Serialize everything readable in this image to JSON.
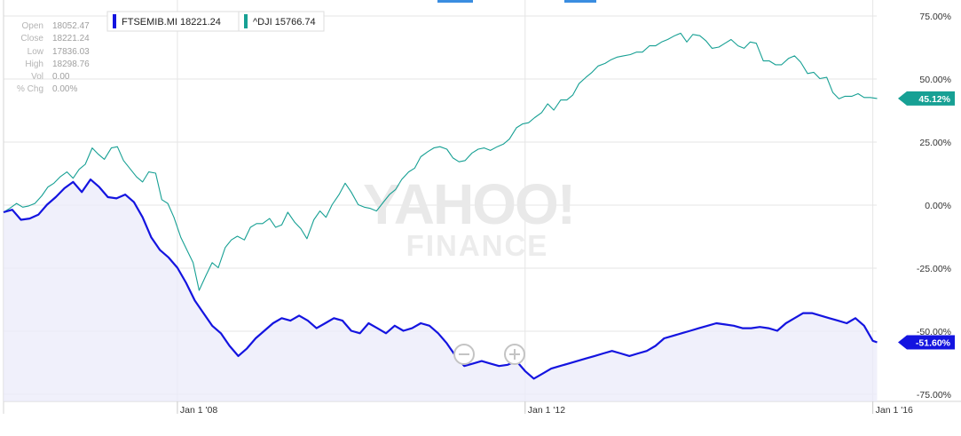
{
  "ohlc": {
    "rows": [
      {
        "key": "Open",
        "value": "18052.47"
      },
      {
        "key": "Close",
        "value": "18221.24"
      },
      {
        "key": "Low",
        "value": "17836.03"
      },
      {
        "key": "High",
        "value": "18298.76"
      },
      {
        "key": "Vol",
        "value": "0.00"
      },
      {
        "key": "% Chg",
        "value": "0.00%"
      }
    ]
  },
  "legend": [
    {
      "label": "FTSEMIB.MI 18221.24",
      "color": "#1414e0"
    },
    {
      "label": "^DJI 15766.74",
      "color": "#17a094"
    }
  ],
  "watermark": {
    "line1": "YAHOO!",
    "line2": "FINANCE"
  },
  "zoom": {
    "out_icon": "zoom-out-icon",
    "in_icon": "zoom-in-icon"
  },
  "chart_data": {
    "type": "line",
    "y_unit": "percent change",
    "ylim": [
      -75,
      75
    ],
    "y_ticks": [
      75,
      50,
      25,
      0,
      -25,
      -50,
      -75
    ],
    "y_tick_labels": [
      "75.00%",
      "50.00%",
      "25.00%",
      "0.00%",
      "-25.00%",
      "-50.00%",
      "-75.00%"
    ],
    "x_ticks": [
      2008,
      2012,
      2016
    ],
    "x_tick_labels": [
      "Jan 1 '08",
      "Jan 1 '12",
      "Jan 1 '16"
    ],
    "xlim": [
      2006.0,
      2016.3
    ],
    "grid": true,
    "legend_position": "top-left",
    "series": [
      {
        "name": "^DJI",
        "color": "#17a094",
        "end_label": "45.12%",
        "x": [
          2006.0,
          2006.07,
          2006.15,
          2006.22,
          2006.29,
          2006.36,
          2006.44,
          2006.51,
          2006.58,
          2006.65,
          2006.73,
          2006.8,
          2006.87,
          2006.94,
          2007.02,
          2007.09,
          2007.16,
          2007.24,
          2007.31,
          2007.38,
          2007.45,
          2007.53,
          2007.6,
          2007.67,
          2007.75,
          2007.82,
          2007.89,
          2007.96,
          2008.04,
          2008.11,
          2008.18,
          2008.25,
          2008.33,
          2008.4,
          2008.47,
          2008.55,
          2008.62,
          2008.69,
          2008.77,
          2008.84,
          2008.91,
          2008.98,
          2009.06,
          2009.13,
          2009.2,
          2009.27,
          2009.35,
          2009.42,
          2009.49,
          2009.57,
          2009.64,
          2009.71,
          2009.78,
          2009.86,
          2009.93,
          2010.0,
          2010.08,
          2010.15,
          2010.22,
          2010.29,
          2010.37,
          2010.44,
          2010.51,
          2010.58,
          2010.66,
          2010.73,
          2010.8,
          2010.88,
          2010.95,
          2011.02,
          2011.1,
          2011.17,
          2011.24,
          2011.31,
          2011.39,
          2011.46,
          2011.53,
          2011.6,
          2011.68,
          2011.75,
          2011.82,
          2011.9,
          2011.97,
          2012.04,
          2012.11,
          2012.19,
          2012.26,
          2012.33,
          2012.41,
          2012.48,
          2012.55,
          2012.62,
          2012.7,
          2012.77,
          2012.84,
          2012.92,
          2012.99,
          2013.06,
          2013.13,
          2013.21,
          2013.28,
          2013.35,
          2013.43,
          2013.5,
          2013.57,
          2013.64,
          2013.72,
          2013.79,
          2013.86,
          2013.93,
          2014.01,
          2014.08,
          2014.15,
          2014.23,
          2014.3,
          2014.37,
          2014.45,
          2014.52,
          2014.59,
          2014.66,
          2014.74,
          2014.81,
          2014.88,
          2014.95,
          2015.03,
          2015.1,
          2015.17,
          2015.25,
          2015.32,
          2015.39,
          2015.47,
          2015.54,
          2015.61,
          2015.68,
          2015.76,
          2015.83,
          2015.9,
          2015.97,
          2016.05
        ],
        "values": [
          0.0,
          1.5,
          3.5,
          2.0,
          2.5,
          3.5,
          6.5,
          10.0,
          11.5,
          14.0,
          16.0,
          13.5,
          17.0,
          19.0,
          25.5,
          23.0,
          21.0,
          25.5,
          26.0,
          20.5,
          17.5,
          14.0,
          12.0,
          16.0,
          15.5,
          5.0,
          3.5,
          -2.0,
          -10.0,
          -15.0,
          -20.0,
          -31.0,
          -25.0,
          -20.0,
          -22.0,
          -14.0,
          -11.0,
          -9.5,
          -11.0,
          -6.0,
          -4.5,
          -4.5,
          -2.5,
          -6.0,
          -5.0,
          0.0,
          -4.0,
          -6.5,
          -10.5,
          -3.0,
          0.5,
          -2.0,
          3.0,
          7.0,
          11.5,
          8.0,
          3.0,
          2.0,
          1.5,
          0.5,
          4.0,
          7.0,
          9.0,
          13.0,
          16.0,
          17.5,
          22.0,
          24.0,
          25.5,
          26.0,
          25.0,
          21.5,
          20.0,
          20.5,
          23.5,
          25.0,
          25.5,
          24.5,
          26.0,
          27.0,
          29.0,
          33.5,
          35.0,
          35.5,
          37.5,
          39.5,
          43.0,
          40.5,
          44.5,
          44.5,
          46.5,
          51.0,
          53.5,
          55.5,
          58.0,
          59.0,
          60.5,
          61.5,
          62.0,
          62.5,
          63.5,
          63.5,
          66.0,
          66.0,
          67.5,
          68.5,
          70.0,
          71.0,
          67.5,
          70.5,
          70.0,
          68.0,
          65.0,
          65.5,
          67.0,
          68.5,
          66.0,
          65.0,
          67.5,
          67.0,
          60.0,
          60.0,
          58.5,
          58.5,
          61.0,
          62.0,
          59.5,
          55.0,
          55.5,
          53.0,
          53.5,
          47.5,
          45.0,
          46.0,
          46.0,
          47.0,
          45.5,
          45.5,
          45.12
        ]
      },
      {
        "name": "FTSEMIB.MI",
        "color": "#1414e0",
        "end_label": "-51.60%",
        "x": [
          2006.0,
          2006.1,
          2006.2,
          2006.3,
          2006.4,
          2006.5,
          2006.6,
          2006.7,
          2006.8,
          2006.9,
          2007.0,
          2007.1,
          2007.2,
          2007.3,
          2007.4,
          2007.5,
          2007.6,
          2007.7,
          2007.8,
          2007.9,
          2008.0,
          2008.1,
          2008.2,
          2008.3,
          2008.4,
          2008.5,
          2008.6,
          2008.7,
          2008.8,
          2008.9,
          2009.0,
          2009.1,
          2009.2,
          2009.3,
          2009.4,
          2009.5,
          2009.6,
          2009.7,
          2009.8,
          2009.9,
          2010.0,
          2010.1,
          2010.2,
          2010.3,
          2010.4,
          2010.5,
          2010.6,
          2010.7,
          2010.8,
          2010.9,
          2011.0,
          2011.1,
          2011.2,
          2011.3,
          2011.4,
          2011.5,
          2011.6,
          2011.7,
          2011.8,
          2011.9,
          2012.0,
          2012.1,
          2012.2,
          2012.3,
          2012.4,
          2012.5,
          2012.6,
          2012.7,
          2012.8,
          2012.9,
          2013.0,
          2013.1,
          2013.2,
          2013.3,
          2013.4,
          2013.5,
          2013.6,
          2013.7,
          2013.8,
          2013.9,
          2014.0,
          2014.1,
          2014.2,
          2014.3,
          2014.4,
          2014.5,
          2014.6,
          2014.7,
          2014.8,
          2014.9,
          2015.0,
          2015.1,
          2015.2,
          2015.3,
          2015.4,
          2015.5,
          2015.6,
          2015.7,
          2015.8,
          2015.9,
          2016.0,
          2016.05
        ],
        "values": [
          0.0,
          1.0,
          -3.0,
          -2.5,
          -1.0,
          3.0,
          6.0,
          9.5,
          12.0,
          8.0,
          13.0,
          10.0,
          6.0,
          5.5,
          7.0,
          4.0,
          -2.0,
          -10.0,
          -15.0,
          -18.0,
          -22.0,
          -28.0,
          -35.0,
          -40.0,
          -45.0,
          -48.0,
          -53.0,
          -57.0,
          -54.0,
          -50.0,
          -47.0,
          -44.0,
          -42.0,
          -43.0,
          -41.0,
          -43.0,
          -46.0,
          -44.0,
          -42.0,
          -43.0,
          -47.0,
          -48.0,
          -44.0,
          -46.0,
          -48.0,
          -45.0,
          -47.0,
          -46.0,
          -44.0,
          -45.0,
          -48.0,
          -52.0,
          -57.0,
          -61.0,
          -60.0,
          -59.0,
          -60.0,
          -61.0,
          -60.5,
          -59.0,
          -63.0,
          -66.0,
          -64.0,
          -62.0,
          -61.0,
          -60.0,
          -59.0,
          -58.0,
          -57.0,
          -56.0,
          -55.0,
          -56.0,
          -57.0,
          -56.0,
          -55.0,
          -53.0,
          -50.0,
          -49.0,
          -48.0,
          -47.0,
          -46.0,
          -45.0,
          -44.0,
          -44.5,
          -45.0,
          -46.0,
          -46.0,
          -45.5,
          -46.0,
          -47.0,
          -44.0,
          -42.0,
          -40.0,
          -40.0,
          -41.0,
          -42.0,
          -43.0,
          -44.0,
          -42.0,
          -45.0,
          -51.0,
          -51.6
        ]
      }
    ]
  }
}
